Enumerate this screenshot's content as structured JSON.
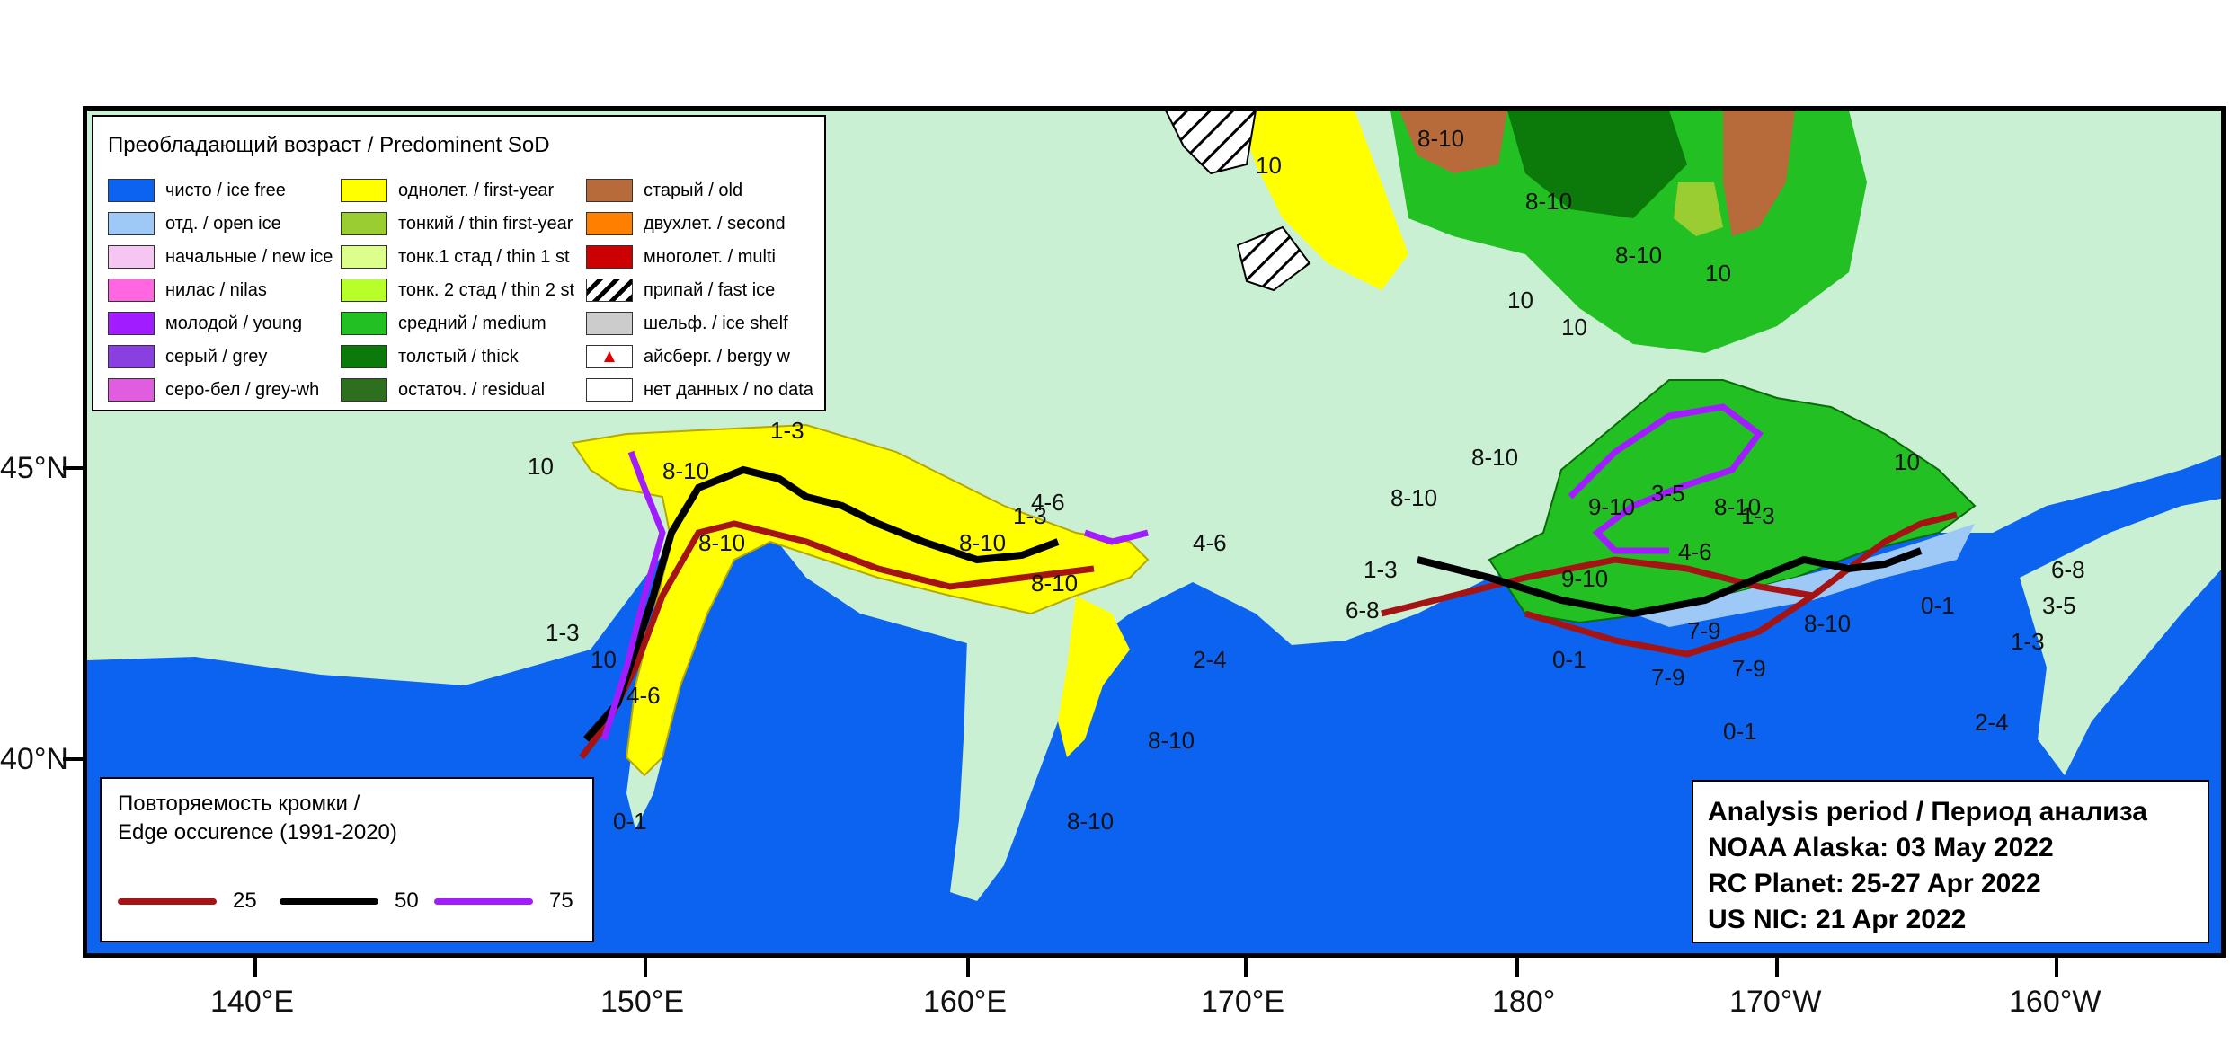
{
  "map": {
    "colors": {
      "ice_free": "#0b63f0",
      "land": "#c9f0d3",
      "first_year": "#ffff00",
      "medium": "#22c022",
      "thick": "#0b7a0b",
      "old": "#b76a3a",
      "young": "#a11cff",
      "open_ice": "#9ec9f7",
      "thin_first_year": "#9acd32"
    },
    "lat_labels": [
      "45°N",
      "40°N"
    ],
    "lon_labels": [
      "140°E",
      "150°E",
      "160°E",
      "170°E",
      "180°",
      "170°W",
      "160°W"
    ],
    "ice_labels": [
      "8-10",
      "8-10",
      "8-10",
      "8-10",
      "8-10",
      "8-10",
      "8-10",
      "8-10",
      "8-10",
      "10",
      "10",
      "10",
      "10",
      "10",
      "10",
      "1-3",
      "1-3",
      "1-3",
      "1-3",
      "4-6",
      "4-6",
      "4-6",
      "6-8",
      "7-9",
      "9-10",
      "9-10",
      "0-1",
      "0-1",
      "2-4",
      "3-5",
      "8-10",
      "10",
      "8-10",
      "8-10",
      "1-3",
      "4-6",
      "0-1",
      "7-9",
      "7-9",
      "8-10",
      "1-3",
      "2-4",
      "0-1",
      "6-8",
      "3-5"
    ]
  },
  "legend_sod": {
    "title": "Преобладающий возраст / Predominent SoD",
    "items": [
      {
        "label": "чисто / ice free",
        "color": "#0b63f0"
      },
      {
        "label": "отд. / open ice",
        "color": "#9ec9f7"
      },
      {
        "label": "начальные / new ice",
        "color": "#f5c6f2"
      },
      {
        "label": "нилас / nilas",
        "color": "#ff66e0"
      },
      {
        "label": "молодой / young",
        "color": "#a11cff"
      },
      {
        "label": "серый / grey",
        "color": "#8a3fe0"
      },
      {
        "label": "серо-бел / grey-wh",
        "color": "#e05de0"
      },
      {
        "label": "однолет. / first-year",
        "color": "#ffff00"
      },
      {
        "label": "тонкий / thin first-year",
        "color": "#9acd32"
      },
      {
        "label": "тонк.1 стад / thin 1 st",
        "color": "#dcff8c"
      },
      {
        "label": "тонк. 2 стад / thin 2 st",
        "color": "#b8ff2a"
      },
      {
        "label": "средний / medium",
        "color": "#22c022"
      },
      {
        "label": "толстый / thick",
        "color": "#0b7a0b"
      },
      {
        "label": "остаточ. / residual",
        "color": "#2d6e1f"
      },
      {
        "label": "старый / old",
        "color": "#b76a3a"
      },
      {
        "label": "двухлет. / second",
        "color": "#ff8000"
      },
      {
        "label": "многолет. / multi",
        "color": "#cc0000"
      },
      {
        "label": "припай / fast ice",
        "color": "#ffffff",
        "icon": "hatched-icon"
      },
      {
        "label": "шельф. / ice shelf",
        "color": "#cccccc"
      },
      {
        "label": "айсберг. / bergy w",
        "color": "#ffffff",
        "icon": "red-triangle-icon"
      },
      {
        "label": "нет данных / no data",
        "color": "#ffffff"
      }
    ]
  },
  "legend_edge": {
    "title_line1": "Повторяемость кромки /",
    "title_line2": "Edge occurence (1991-2020)",
    "items": [
      {
        "label": "25",
        "color": "#a51414"
      },
      {
        "label": "50",
        "color": "#000000"
      },
      {
        "label": "75",
        "color": "#a11cff"
      }
    ]
  },
  "analysis": {
    "line1": "Analysis period / Период анализа",
    "line2": "NOAA Alaska: 03 May 2022",
    "line3": "RC Planet: 25-27 Apr 2022",
    "line4": "US NIC: 21 Apr 2022"
  }
}
